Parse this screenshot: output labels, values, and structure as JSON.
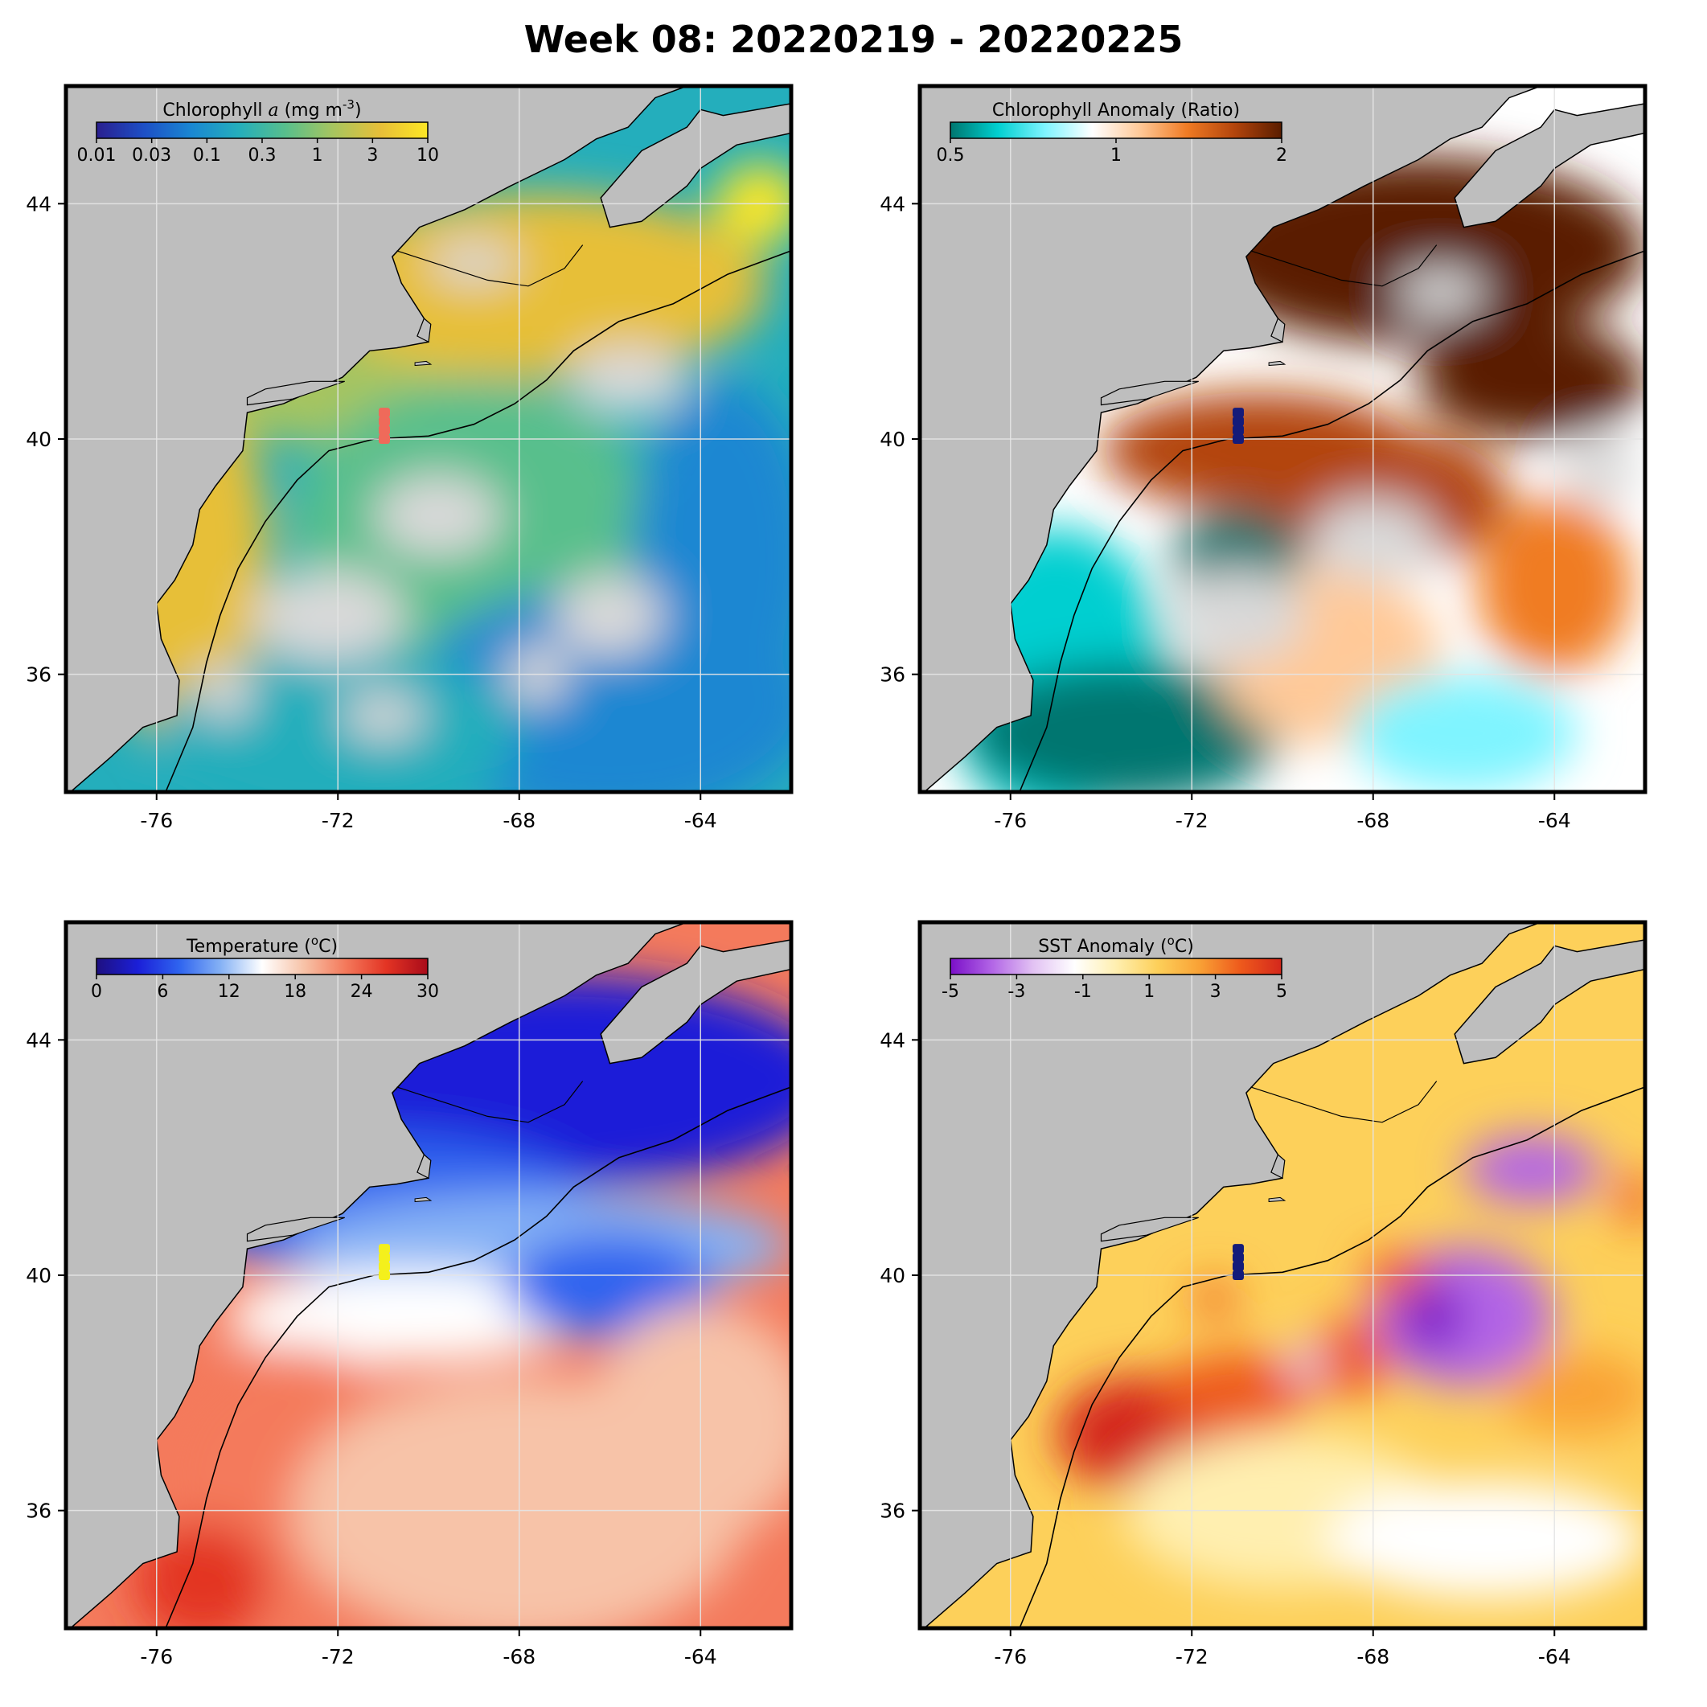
{
  "title": "Week 08: 20220219 - 20220225",
  "map": {
    "lon_range": [
      -78,
      -62
    ],
    "lat_range": [
      34,
      46
    ],
    "x_ticks": [
      {
        "value": -76,
        "label": "-76"
      },
      {
        "value": -72,
        "label": "-72"
      },
      {
        "value": -68,
        "label": "-68"
      },
      {
        "value": -64,
        "label": "-64"
      }
    ],
    "y_ticks": [
      {
        "value": 44,
        "label": "44"
      },
      {
        "value": 40,
        "label": "40"
      },
      {
        "value": 36,
        "label": "36"
      }
    ],
    "grid": true,
    "land_color": "#bebebe",
    "no_data_color": "#d9d9d9"
  },
  "panels": [
    {
      "id": "chlorophyll",
      "colorbar": {
        "title_prefix": "Chlorophyll ",
        "title_italic": "a",
        "title_suffix": " (mg m",
        "title_sup": "-3",
        "title_end": ")",
        "ticks": [
          "0.01",
          "0.03",
          "0.1",
          "0.3",
          "1",
          "3",
          "10"
        ],
        "colors": [
          "#2a1f8f",
          "#1d4fc6",
          "#1a87d2",
          "#24aebc",
          "#58bf8c",
          "#a7c55f",
          "#e7bf38",
          "#fde725"
        ]
      },
      "marker_color": "#ef6a5a"
    },
    {
      "id": "chlorophyll-anomaly",
      "colorbar": {
        "title": "Chlorophyll Anomaly (Ratio)",
        "ticks": [
          "0.5",
          "1",
          "2"
        ],
        "colors": [
          "#00766f",
          "#00cfd0",
          "#7ff4ff",
          "#ffffff",
          "#ffc998",
          "#f07b24",
          "#b3450c",
          "#5a1d00"
        ]
      },
      "marker_color": "#141b7a"
    },
    {
      "id": "temperature",
      "colorbar": {
        "title_prefix": "Temperature (",
        "title_sup": "o",
        "title_end": "C)",
        "ticks": [
          "0",
          "6",
          "12",
          "18",
          "24",
          "30"
        ],
        "colors": [
          "#1e1080",
          "#1b1fd8",
          "#2f64ef",
          "#86b2f5",
          "#ffffff",
          "#f7c3a8",
          "#f47a5c",
          "#e33424",
          "#a90b1a"
        ]
      },
      "marker_color": "#f4f01c"
    },
    {
      "id": "sst-anomaly",
      "colorbar": {
        "title_prefix": "SST Anomaly (",
        "title_sup": "o",
        "title_end": "C)",
        "ticks": [
          "-5",
          "-3",
          "-1",
          "1",
          "3",
          "5"
        ],
        "colors": [
          "#7a0fc8",
          "#b265e6",
          "#e2c2f3",
          "#ffffff",
          "#ffefb0",
          "#fdd05a",
          "#f9a236",
          "#ee5a1c",
          "#d4281c"
        ]
      },
      "marker_color": "#141b7a"
    }
  ]
}
